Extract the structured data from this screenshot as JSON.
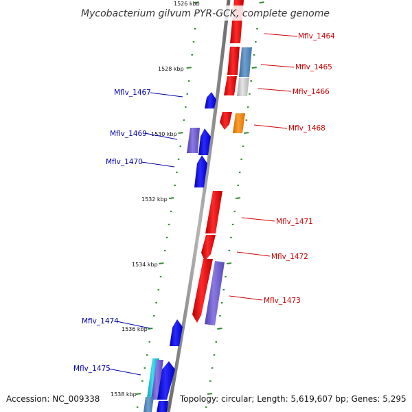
{
  "title": "Mycobacterium gilvum PYR-GCK, complete genome",
  "footer": {
    "accession": "Accession: NC_009338",
    "topology": "Topology: circular; Length: 5,619,607 bp; Genes: 5,295"
  },
  "colors": {
    "forward_label": "#cc0000",
    "reverse_label": "#0000aa",
    "tick": "#2e8b2e",
    "backbone": "#888888"
  },
  "ticks": [
    "1526 kbp",
    "1528 kbp",
    "1530 kbp",
    "1532 kbp",
    "1534 kbp",
    "1536 kbp",
    "1538 kbp"
  ],
  "forward_genes": [
    {
      "label": "Mflv_1464"
    },
    {
      "label": "Mflv_1465"
    },
    {
      "label": "Mflv_1466"
    },
    {
      "label": "Mflv_1468"
    },
    {
      "label": "Mflv_1471"
    },
    {
      "label": "Mflv_1472"
    },
    {
      "label": "Mflv_1473"
    }
  ],
  "reverse_genes": [
    {
      "label": "Mflv_1467"
    },
    {
      "label": "Mflv_1469"
    },
    {
      "label": "Mflv_1470"
    },
    {
      "label": "Mflv_1474"
    },
    {
      "label": "Mflv_1475"
    }
  ]
}
